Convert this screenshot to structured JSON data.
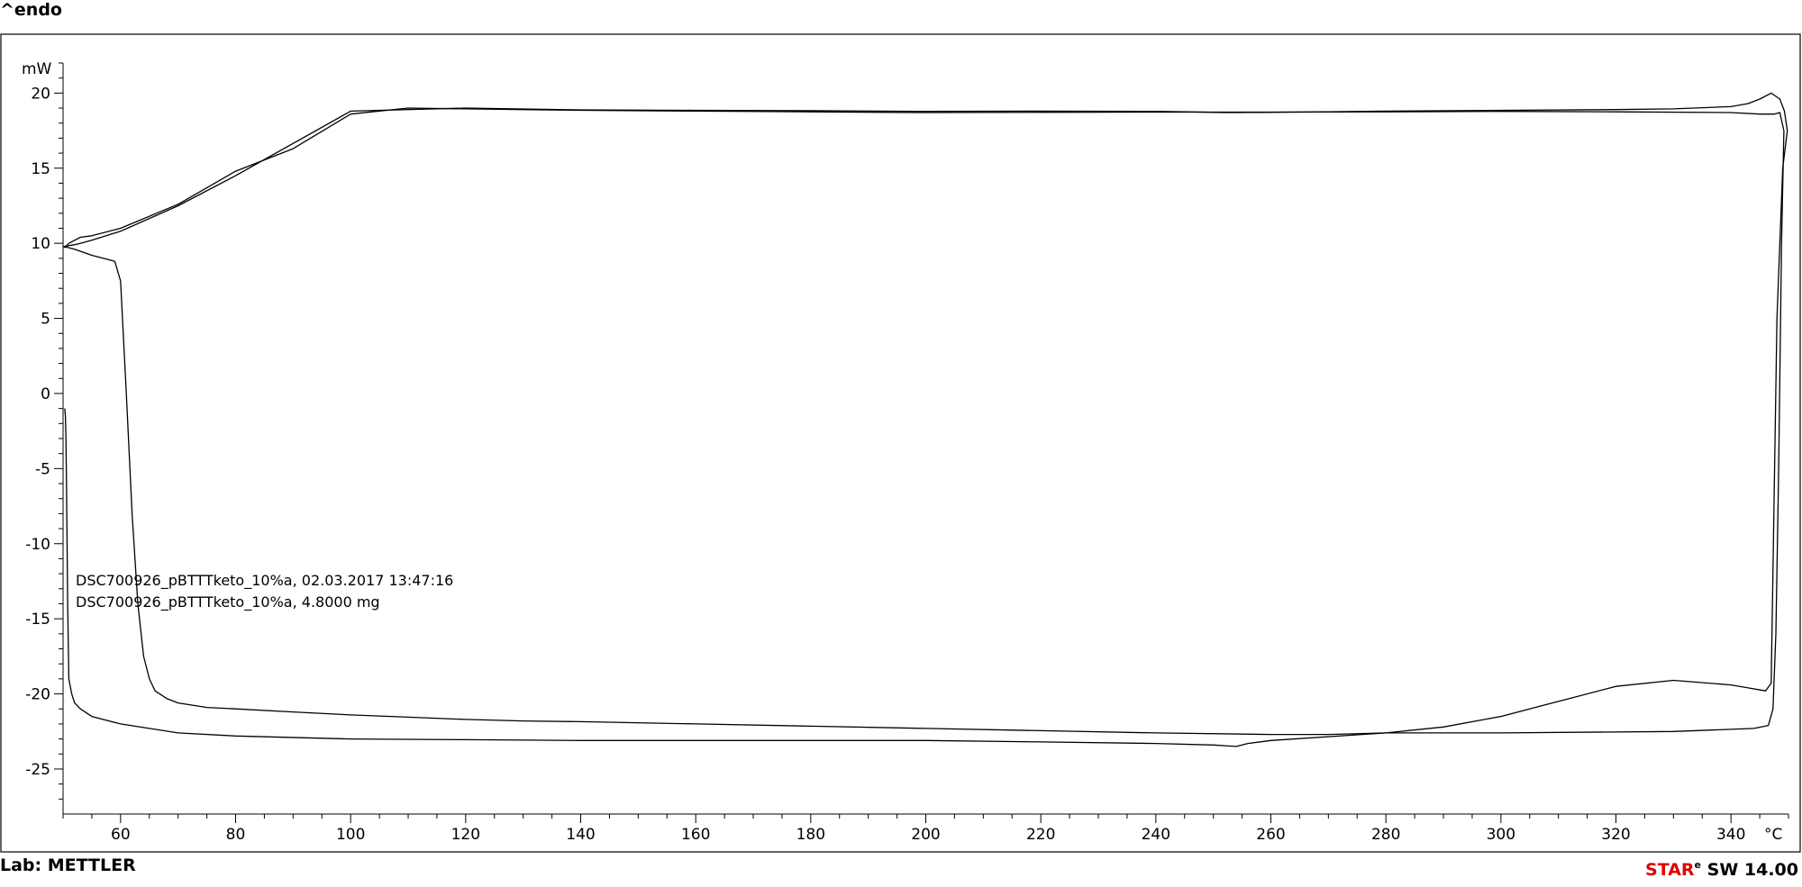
{
  "header": {
    "corner_label": "^endo"
  },
  "footer": {
    "lab_label": "Lab: METTLER",
    "software_red": "STAR",
    "software_superscript": "e",
    "software_rest": " SW 14.00"
  },
  "chart_data": {
    "type": "line",
    "title": "",
    "xlabel": "",
    "ylabel": "mW",
    "x_unit": "°C",
    "xlim": [
      50,
      350
    ],
    "ylim": [
      -28,
      22
    ],
    "x_ticks": [
      60,
      80,
      100,
      120,
      140,
      160,
      180,
      200,
      220,
      240,
      260,
      280,
      300,
      320,
      340
    ],
    "y_ticks": [
      20,
      15,
      10,
      5,
      0,
      -5,
      -10,
      -15,
      -20,
      -25
    ],
    "grid": false,
    "annotations": [
      "DSC700926_pBTTTketo_10%a, 02.03.2017 13:47:16",
      "DSC700926_pBTTTketo_10%a, 4.8000 mg"
    ],
    "series": [
      {
        "color": "#000000",
        "x": [
          50,
          52,
          55,
          58,
          59,
          60,
          61,
          62,
          63,
          64,
          65,
          66,
          68,
          70,
          75,
          80,
          90,
          100,
          110,
          120,
          130,
          140,
          160,
          180,
          200,
          220,
          240,
          260,
          270,
          280,
          290,
          300,
          310,
          320,
          330,
          340,
          343,
          346,
          347,
          348,
          349,
          349.8
        ],
        "y": [
          9.8,
          9.6,
          9.2,
          8.9,
          8.8,
          7.5,
          0,
          -8,
          -14,
          -17.5,
          -19,
          -19.8,
          -20.3,
          -20.6,
          -20.9,
          -21.0,
          -21.2,
          -21.4,
          -21.55,
          -21.7,
          -21.8,
          -21.85,
          -22.0,
          -22.15,
          -22.3,
          -22.45,
          -22.6,
          -22.7,
          -22.7,
          -22.6,
          -22.2,
          -21.5,
          -20.5,
          -19.5,
          -19.1,
          -19.4,
          -19.6,
          -19.8,
          -19.3,
          5,
          15,
          17.5
        ]
      },
      {
        "color": "#000000",
        "x": [
          349.8,
          349.3,
          348.5,
          347,
          345,
          343,
          340,
          330,
          320,
          300,
          280,
          270,
          260,
          256,
          254,
          252,
          250,
          240,
          220,
          200,
          180,
          160,
          140,
          120,
          100,
          80,
          70,
          60,
          55,
          53,
          52,
          51,
          50.7,
          50.5,
          50.4,
          50.3,
          50.2
        ],
        "y": [
          17.5,
          18.8,
          19.6,
          20.0,
          19.6,
          19.3,
          19.1,
          18.95,
          18.9,
          18.85,
          18.8,
          18.75,
          18.72,
          18.71,
          18.7,
          18.7,
          18.72,
          18.78,
          18.8,
          18.78,
          18.83,
          18.85,
          18.88,
          19.0,
          18.8,
          14.5,
          12.5,
          10.8,
          10.2,
          10.0,
          9.9,
          9.85,
          9.8,
          9.8,
          9.8,
          9.8,
          9.8
        ]
      },
      {
        "color": "#000000",
        "x": [
          50.2,
          51,
          52,
          53,
          55,
          60,
          70,
          80,
          90,
          100,
          110,
          120,
          130,
          140,
          160,
          180,
          200,
          220,
          240,
          260,
          280,
          300,
          320,
          340,
          345,
          346.5,
          347.5,
          348.5,
          349.2
        ],
        "y": [
          9.7,
          10.0,
          10.2,
          10.4,
          10.5,
          11.0,
          12.6,
          14.8,
          16.3,
          18.6,
          19.0,
          18.95,
          18.9,
          18.85,
          18.8,
          18.75,
          18.7,
          18.72,
          18.73,
          18.73,
          18.75,
          18.78,
          18.75,
          18.7,
          18.6,
          18.6,
          18.6,
          18.7,
          17.5
        ]
      },
      {
        "color": "#000000",
        "x": [
          349.2,
          348.8,
          348.3,
          347.8,
          347.3,
          346.5,
          344,
          330,
          300,
          280,
          260,
          256,
          254,
          252,
          250,
          240,
          220,
          200,
          180,
          160,
          140,
          120,
          100,
          80,
          70,
          60,
          55,
          53,
          52,
          51.5,
          51,
          50.8,
          50.6,
          50.5,
          50.4,
          50.3
        ],
        "y": [
          17.5,
          10,
          -5,
          -16,
          -21,
          -22.1,
          -22.3,
          -22.5,
          -22.6,
          -22.6,
          -23.1,
          -23.3,
          -23.5,
          -23.45,
          -23.4,
          -23.3,
          -23.2,
          -23.1,
          -23.1,
          -23.1,
          -23.1,
          -23.05,
          -23.0,
          -22.8,
          -22.6,
          -22.0,
          -21.5,
          -21.0,
          -20.6,
          -20.0,
          -19.0,
          -14,
          -6,
          -3,
          -1.5,
          -1.0
        ]
      }
    ]
  }
}
